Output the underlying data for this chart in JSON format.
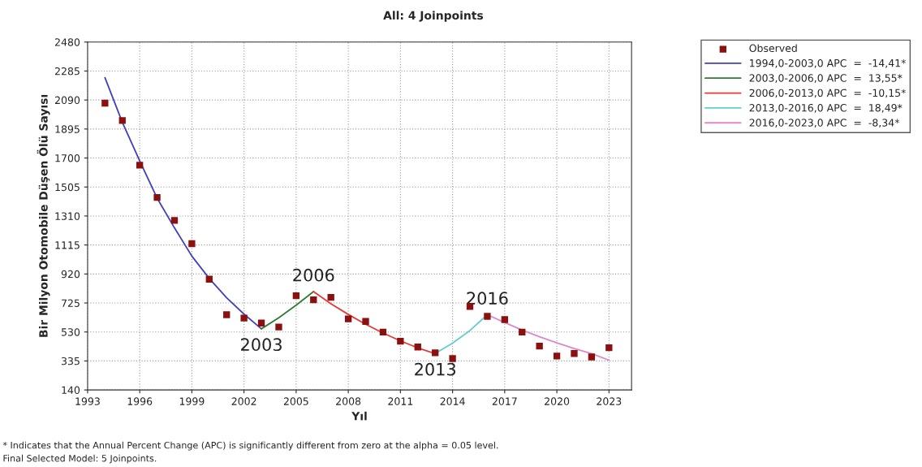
{
  "chart_data": {
    "type": "scatter",
    "title": "All: 4 Joinpoints",
    "xlabel": "Yıl",
    "ylabel": "Bir Milyon Otomobile Düşen Ölü Sayısı",
    "xlim": [
      1993,
      2024.3
    ],
    "xticks": [
      1993,
      1996,
      1999,
      2002,
      2005,
      2008,
      2011,
      2014,
      2017,
      2020,
      2023
    ],
    "ylim": [
      140,
      2480
    ],
    "yticks": [
      140,
      335,
      530,
      725,
      920,
      1115,
      1310,
      1505,
      1700,
      1895,
      2090,
      2285,
      2480
    ],
    "grid": true,
    "legend": "top right",
    "x": [
      1994,
      1995,
      1996,
      1997,
      1998,
      1999,
      2000,
      2001,
      2002,
      2003,
      2004,
      2005,
      2006,
      2007,
      2008,
      2009,
      2010,
      2011,
      2012,
      2013,
      2014,
      2015,
      2016,
      2017,
      2018,
      2019,
      2020,
      2021,
      2022,
      2023
    ],
    "series": [
      {
        "name": "Observed",
        "marker": "square",
        "color": "#8b1010",
        "values": [
          2069,
          1952,
          1652,
          1435,
          1280,
          1124,
          885,
          646,
          623,
          590,
          563,
          774,
          746,
          763,
          618,
          601,
          529,
          468,
          429,
          390,
          351,
          701,
          635,
          613,
          529,
          435,
          368,
          385,
          362,
          424
        ]
      },
      {
        "name": "1994,0-2003,0 APC  =  -14,41*",
        "type": "line",
        "marker": "none",
        "line_style": "solid",
        "color": "#4040c0",
        "x": [
          1994,
          1995,
          1996,
          1997,
          1998,
          1999,
          2000,
          2001,
          2002,
          2003
        ],
        "values": [
          2240,
          1940,
          1680,
          1430,
          1230,
          1040,
          890,
          760,
          650,
          551
        ]
      },
      {
        "name": "2003,0-2006,0 APC  =  13,55*",
        "type": "line",
        "marker": "none",
        "line_style": "solid",
        "color": "#2e7d32",
        "x": [
          2003,
          2004,
          2005,
          2006
        ],
        "values": [
          551,
          625,
          710,
          802
        ]
      },
      {
        "name": "2006,0-2013,0 APC  =  -10,15*",
        "type": "line",
        "marker": "none",
        "line_style": "solid",
        "color": "#e53935",
        "x": [
          2006,
          2007,
          2008,
          2009,
          2010,
          2011,
          2012,
          2013
        ],
        "values": [
          802,
          720,
          648,
          582,
          523,
          470,
          423,
          385
        ]
      },
      {
        "name": "2013,0-2016,0 APC  =  18,49*",
        "type": "line",
        "marker": "none",
        "line_style": "solid",
        "color": "#66cccc",
        "x": [
          2013,
          2014,
          2015,
          2016
        ],
        "values": [
          385,
          455,
          540,
          646
        ]
      },
      {
        "name": "2016,0-2023,0 APC  =  -8,34*",
        "type": "line",
        "marker": "none",
        "line_style": "solid",
        "color": "#dd88cc",
        "x": [
          2016,
          2017,
          2018,
          2019,
          2020,
          2021,
          2022,
          2023
        ],
        "values": [
          646,
          593,
          543,
          498,
          457,
          419,
          384,
          340
        ]
      }
    ],
    "annotations": [
      {
        "text": "2003",
        "x": 2003,
        "y": 551
      },
      {
        "text": "2006",
        "x": 2006,
        "y": 802
      },
      {
        "text": "2013",
        "x": 2013,
        "y": 385
      },
      {
        "text": "2016",
        "x": 2016,
        "y": 646
      },
      "* Indicates that the Annual Percent Change (APC) is significantly different from zero at the alpha = 0.05 level.",
      "Final Selected Model: 5 Joinpoints."
    ]
  }
}
